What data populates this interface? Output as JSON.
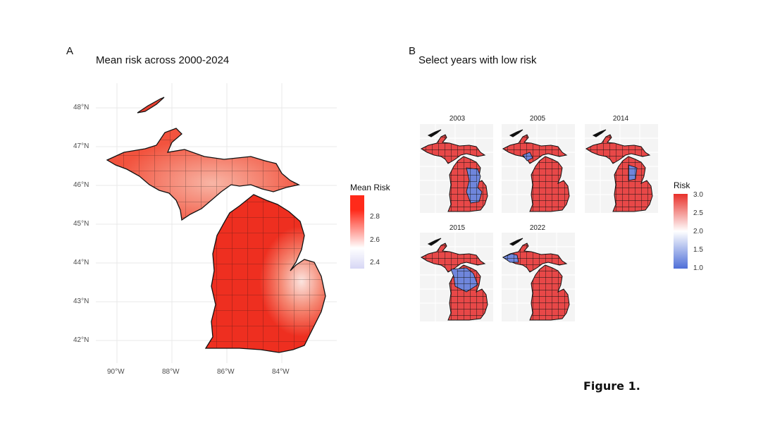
{
  "panel_a": {
    "letter": "A",
    "title": "Mean risk across 2000-2024",
    "lat_labels": [
      "48°N",
      "47°N",
      "46°N",
      "45°N",
      "44°N",
      "43°N",
      "42°N"
    ],
    "lon_labels": [
      "90°W",
      "88°W",
      "86°W",
      "84°W"
    ],
    "legend": {
      "title": "Mean Risk",
      "ticks": [
        "2.8",
        "2.6",
        "2.4"
      ],
      "colors": [
        "#ff2a1a",
        "#ffffff",
        "#d7d7f5"
      ]
    }
  },
  "panel_b": {
    "letter": "B",
    "title": "Select years with low risk",
    "facets": [
      {
        "year": "2003"
      },
      {
        "year": "2005"
      },
      {
        "year": "2014"
      },
      {
        "year": "2015"
      },
      {
        "year": "2022"
      }
    ],
    "legend": {
      "title": "Risk",
      "ticks": [
        "3.0",
        "2.5",
        "2.0",
        "1.5",
        "1.0"
      ],
      "colors": [
        "#e8302a",
        "#ffffff",
        "#4f6fd8"
      ]
    }
  },
  "caption": "Figure 1."
}
